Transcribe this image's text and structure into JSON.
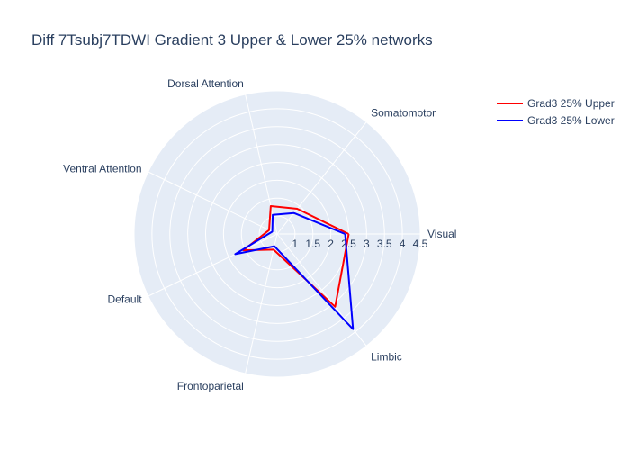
{
  "chart_data": {
    "type": "radar",
    "title": "Diff 7Tsubj7TDWI Gradient 3 Upper & Lower 25% networks",
    "categories": [
      "Visual",
      "Somatomotor",
      "Dorsal Attention",
      "Ventral Attention",
      "Default",
      "Frontoparietal",
      "Limbic"
    ],
    "radial_axis": {
      "range": [
        0.5,
        4.5
      ],
      "ticks": [
        1,
        1.5,
        2,
        2.5,
        3,
        3.5,
        4,
        4.5
      ],
      "tick_labels": [
        "1",
        "1.5",
        "2",
        "2.5",
        "3",
        "3.5",
        "4",
        "4.5"
      ]
    },
    "series": [
      {
        "name": "Grad3 25% Upper",
        "color": "#ff0000",
        "values": [
          2.5,
          1.4,
          1.3,
          0.75,
          1.55,
          0.95,
          3.1
        ]
      },
      {
        "name": "Grad3 25% Lower",
        "color": "#0000ff",
        "values": [
          2.4,
          1.25,
          1.05,
          0.65,
          1.8,
          0.85,
          3.9
        ]
      }
    ],
    "legend_position": "top-right",
    "colors": {
      "polar_bg": "#e5ecf6",
      "grid": "#ffffff",
      "text": "#2a3f5f"
    }
  }
}
